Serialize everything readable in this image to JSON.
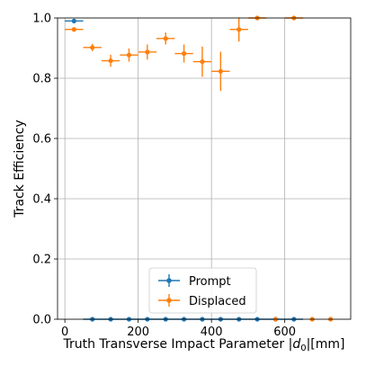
{
  "chart_data": {
    "type": "scatter",
    "xlabel": "Truth Transverse Impact Parameter |d0|[mm]",
    "xlabel_parts": {
      "main": "Truth Transverse Impact Parameter |",
      "var": "d",
      "sub": "0",
      "tail": "|[mm]"
    },
    "ylabel": "Track Efficiency",
    "xlim": [
      -20,
      780
    ],
    "ylim": [
      0,
      1
    ],
    "x_ticks": [
      0,
      200,
      400,
      600
    ],
    "y_ticks": [
      0.0,
      0.2,
      0.4,
      0.6,
      0.8,
      1.0
    ],
    "x_tick_labels": [
      "0",
      "200",
      "400",
      "600"
    ],
    "y_tick_labels": [
      "0.0",
      "0.2",
      "0.4",
      "0.6",
      "0.8",
      "1.0"
    ],
    "grid": true,
    "legend_position": "bottom-center",
    "series": [
      {
        "name": "Prompt",
        "color": "#1f77b4",
        "points": [
          {
            "x": 25,
            "y": 0.99,
            "xerr": 25,
            "yerr": 0.003
          },
          {
            "x": 75,
            "y": 0.0,
            "xerr": 25,
            "yerr": 0
          },
          {
            "x": 125,
            "y": 0.0,
            "xerr": 25,
            "yerr": 0
          },
          {
            "x": 175,
            "y": 0.0,
            "xerr": 25,
            "yerr": 0
          },
          {
            "x": 225,
            "y": 0.0,
            "xerr": 25,
            "yerr": 0
          },
          {
            "x": 275,
            "y": 0.0,
            "xerr": 25,
            "yerr": 0
          },
          {
            "x": 325,
            "y": 0.0,
            "xerr": 25,
            "yerr": 0
          },
          {
            "x": 375,
            "y": 0.0,
            "xerr": 25,
            "yerr": 0
          },
          {
            "x": 425,
            "y": 0.0,
            "xerr": 25,
            "yerr": 0
          },
          {
            "x": 475,
            "y": 0.0,
            "xerr": 25,
            "yerr": 0
          },
          {
            "x": 525,
            "y": 0.0,
            "xerr": 25,
            "yerr": 0
          },
          {
            "x": 575,
            "y": 0.0,
            "xerr": 25,
            "yerr": 0
          },
          {
            "x": 625,
            "y": 0.0,
            "xerr": 25,
            "yerr": 0
          }
        ]
      },
      {
        "name": "Displaced",
        "color": "#ff7f0e",
        "points": [
          {
            "x": 25,
            "y": 0.962,
            "xerr": 25,
            "yerr": 0.004
          },
          {
            "x": 75,
            "y": 0.902,
            "xerr": 25,
            "yerr": 0.012
          },
          {
            "x": 125,
            "y": 0.858,
            "xerr": 25,
            "yerr": 0.02
          },
          {
            "x": 175,
            "y": 0.877,
            "xerr": 25,
            "yerr": 0.022
          },
          {
            "x": 225,
            "y": 0.887,
            "xerr": 25,
            "yerr": 0.025
          },
          {
            "x": 275,
            "y": 0.932,
            "xerr": 25,
            "yerr": 0.02
          },
          {
            "x": 325,
            "y": 0.882,
            "xerr": 25,
            "yerr": 0.03
          },
          {
            "x": 375,
            "y": 0.855,
            "xerr": 25,
            "yerr": 0.05
          },
          {
            "x": 425,
            "y": 0.823,
            "xerr": 25,
            "yerr": 0.065
          },
          {
            "x": 475,
            "y": 0.962,
            "xerr": 25,
            "yerr": 0.04
          },
          {
            "x": 525,
            "y": 1.0,
            "xerr": 25,
            "yerr": 0
          },
          {
            "x": 575,
            "y": 0.0,
            "xerr": 0,
            "yerr": 0
          },
          {
            "x": 625,
            "y": 1.0,
            "xerr": 25,
            "yerr": 0
          },
          {
            "x": 675,
            "y": 0.0,
            "xerr": 0,
            "yerr": 0
          },
          {
            "x": 725,
            "y": 0.0,
            "xerr": 0,
            "yerr": 0
          }
        ]
      }
    ]
  }
}
